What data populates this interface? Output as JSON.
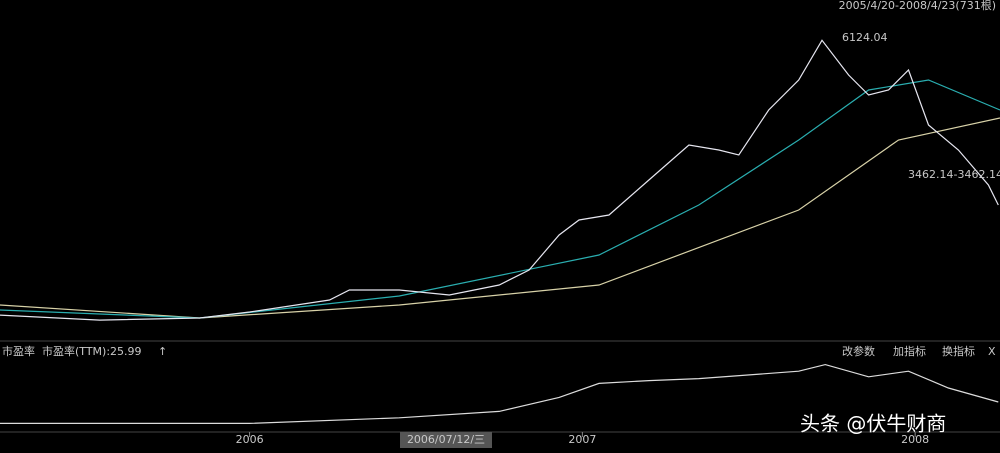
{
  "ui": {
    "range": "2005/4/20-2008/4/23(731根)",
    "panel_title": "市盈率",
    "pe_label": "市盈率(TTM):25.99",
    "arrow": "↑",
    "buttons": [
      "改参数",
      "加指标",
      "换指标",
      "X"
    ],
    "cursor_date": "2006/07/12/三",
    "watermark": "头条 @伏牛财商"
  },
  "chart_data": [
    {
      "type": "line",
      "annotations": [
        "6124.04",
        "3462.14-3462.14"
      ],
      "xlim": [
        2005.25,
        2008.255
      ],
      "xticks": [
        2006,
        2007,
        2008
      ],
      "ylim": [
        800,
        6400
      ],
      "series": [
        {
          "color": "#d8d2a8",
          "x": [
            2005.25,
            2005.85,
            2006.45,
            2007.05,
            2007.65,
            2007.95,
            2008.255
          ],
          "values": [
            1342,
            1107,
            1342,
            1703,
            3058,
            4323,
            4720
          ]
        },
        {
          "color": "#2aaeb0",
          "x": [
            2005.25,
            2005.85,
            2006.45,
            2007.05,
            2007.35,
            2007.65,
            2007.86,
            2008.04,
            2008.255
          ],
          "values": [
            1252,
            1107,
            1505,
            2245,
            3148,
            4323,
            5226,
            5406,
            4865
          ]
        },
        {
          "color": "#e6e6f0",
          "x": [
            2005.25,
            2005.55,
            2005.85,
            2006.0,
            2006.24,
            2006.3,
            2006.45,
            2006.6,
            2006.75,
            2006.84,
            2006.93,
            2006.99,
            2007.08,
            2007.2,
            2007.32,
            2007.41,
            2007.47,
            2007.56,
            2007.65,
            2007.72,
            2007.8,
            2007.86,
            2007.92,
            2007.98,
            2008.04,
            2008.13,
            2008.22,
            2008.25
          ],
          "values": [
            1160,
            1070,
            1107,
            1215,
            1432,
            1613,
            1613,
            1523,
            1703,
            1974,
            2606,
            2877,
            2968,
            3600,
            4232,
            4142,
            4052,
            4865,
            5406,
            6124,
            5497,
            5135,
            5226,
            5587,
            4594,
            4142,
            3510,
            3148
          ]
        }
      ]
    },
    {
      "type": "line",
      "xlim": [
        2005.25,
        2008.255
      ],
      "ylim": [
        10,
        75
      ],
      "series": [
        {
          "color": "#dcdcdc",
          "x": [
            2005.25,
            2006.0,
            2006.45,
            2006.75,
            2006.93,
            2007.05,
            2007.2,
            2007.35,
            2007.65,
            2007.73,
            2007.86,
            2007.98,
            2008.1,
            2008.25
          ],
          "values": [
            16.1,
            16.1,
            21.3,
            27.3,
            40.3,
            53.3,
            55.9,
            57.7,
            64.6,
            70.7,
            59.4,
            64.6,
            49,
            36
          ]
        }
      ]
    }
  ]
}
